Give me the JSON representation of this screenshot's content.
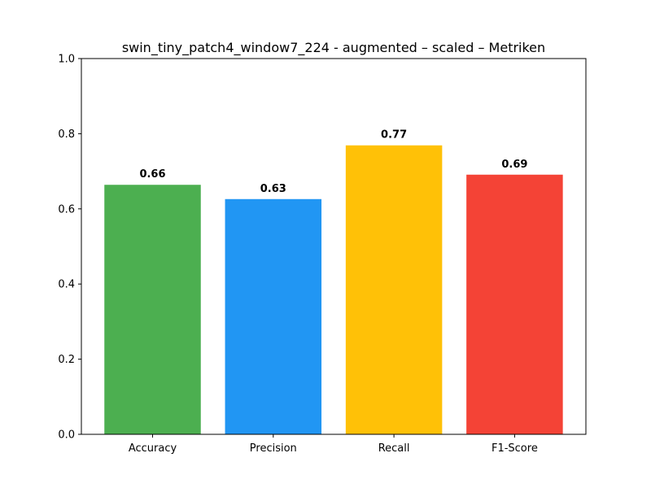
{
  "chart_data": {
    "type": "bar",
    "title": "swin_tiny_patch4_window7_224 - augmented – scaled – Metriken",
    "xlabel": "",
    "ylabel": "",
    "categories": [
      "Accuracy",
      "Precision",
      "Recall",
      "F1-Score"
    ],
    "values": [
      0.664,
      0.626,
      0.769,
      0.691
    ],
    "value_labels": [
      "0.66",
      "0.63",
      "0.77",
      "0.69"
    ],
    "colors": [
      "#4caf50",
      "#2196f3",
      "#ffc107",
      "#f44336"
    ],
    "ylim": [
      0,
      1.0
    ],
    "yticks": [
      0.0,
      0.2,
      0.4,
      0.6,
      0.8,
      1.0
    ],
    "ytick_labels": [
      "0.0",
      "0.2",
      "0.4",
      "0.6",
      "0.8",
      "1.0"
    ],
    "grid": false,
    "legend": "none"
  }
}
